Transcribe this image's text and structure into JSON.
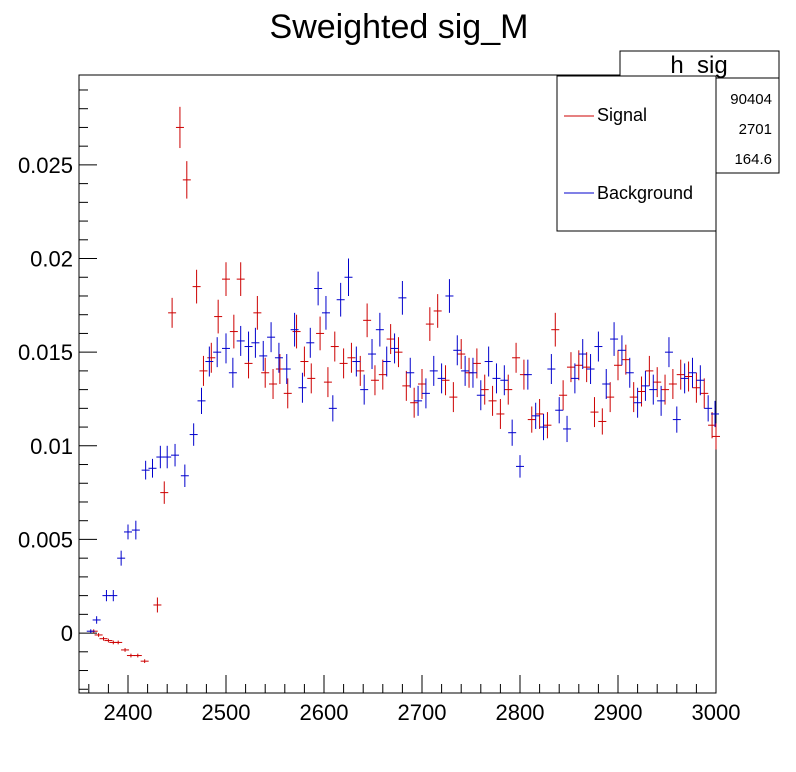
{
  "chart_data": {
    "type": "scatter",
    "title": "Sweighted sig_M",
    "xlabel": "",
    "ylabel": "",
    "xlim": [
      2350,
      3000
    ],
    "ylim": [
      -0.0032,
      0.0298
    ],
    "x_ticks": [
      "2400",
      "2500",
      "2600",
      "2700",
      "2800",
      "2900",
      "3000"
    ],
    "y_ticks": [
      "0",
      "0.005",
      "0.01",
      "0.015",
      "0.02",
      "0.025"
    ],
    "stats_box": {
      "title": "h_sig",
      "values": [
        "90404",
        "2701",
        "164.6"
      ]
    },
    "legend": {
      "placement": "top-right"
    },
    "series": [
      {
        "name": "Signal",
        "color": "#cc0000",
        "points": [
          [
            2365,
            0.0001,
            0.0001
          ],
          [
            2370,
            -0.0001,
            0.0001
          ],
          [
            2375,
            -0.0003,
            0.0001
          ],
          [
            2380,
            -0.0004,
            0.0001
          ],
          [
            2385,
            -0.0005,
            0.0001
          ],
          [
            2390,
            -0.0005,
            0.0001
          ],
          [
            2397,
            -0.0009,
            0.0001
          ],
          [
            2403,
            -0.0012,
            0.0001
          ],
          [
            2410,
            -0.0012,
            0.0001
          ],
          [
            2417,
            -0.0015,
            0.0001
          ],
          [
            2430,
            0.0015,
            0.0004
          ],
          [
            2437,
            0.0075,
            0.0006
          ],
          [
            2445,
            0.0171,
            0.0008
          ],
          [
            2453,
            0.027,
            0.0011
          ],
          [
            2460,
            0.0242,
            0.001
          ],
          [
            2470,
            0.0185,
            0.0009
          ],
          [
            2477,
            0.014,
            0.0008
          ],
          [
            2485,
            0.0147,
            0.0008
          ],
          [
            2492,
            0.0169,
            0.0009
          ],
          [
            2500,
            0.0189,
            0.0009
          ],
          [
            2508,
            0.0161,
            0.0009
          ],
          [
            2515,
            0.0189,
            0.0009
          ],
          [
            2523,
            0.0144,
            0.0008
          ],
          [
            2532,
            0.0171,
            0.0009
          ],
          [
            2540,
            0.0139,
            0.0008
          ],
          [
            2548,
            0.0133,
            0.0008
          ],
          [
            2555,
            0.0141,
            0.0008
          ],
          [
            2563,
            0.0128,
            0.0008
          ],
          [
            2572,
            0.0161,
            0.0009
          ],
          [
            2580,
            0.0145,
            0.0008
          ],
          [
            2587,
            0.0136,
            0.0008
          ],
          [
            2596,
            0.016,
            0.0009
          ],
          [
            2604,
            0.0134,
            0.0008
          ],
          [
            2611,
            0.0153,
            0.0008
          ],
          [
            2620,
            0.0144,
            0.0008
          ],
          [
            2628,
            0.0147,
            0.0008
          ],
          [
            2637,
            0.014,
            0.0008
          ],
          [
            2644,
            0.0167,
            0.0009
          ],
          [
            2652,
            0.0135,
            0.0008
          ],
          [
            2660,
            0.0138,
            0.0008
          ],
          [
            2668,
            0.0157,
            0.0008
          ],
          [
            2676,
            0.015,
            0.0008
          ],
          [
            2684,
            0.0132,
            0.0008
          ],
          [
            2692,
            0.0123,
            0.0008
          ],
          [
            2700,
            0.0133,
            0.0008
          ],
          [
            2708,
            0.0165,
            0.0009
          ],
          [
            2716,
            0.0172,
            0.0009
          ],
          [
            2724,
            0.0135,
            0.0008
          ],
          [
            2732,
            0.0126,
            0.0008
          ],
          [
            2740,
            0.0149,
            0.0008
          ],
          [
            2748,
            0.0139,
            0.0008
          ],
          [
            2756,
            0.0144,
            0.0008
          ],
          [
            2764,
            0.013,
            0.0008
          ],
          [
            2772,
            0.0124,
            0.0008
          ],
          [
            2780,
            0.0117,
            0.0008
          ],
          [
            2788,
            0.013,
            0.0008
          ],
          [
            2796,
            0.0147,
            0.0008
          ],
          [
            2804,
            0.0138,
            0.0008
          ],
          [
            2812,
            0.0114,
            0.0007
          ],
          [
            2820,
            0.0117,
            0.0008
          ],
          [
            2828,
            0.0111,
            0.0007
          ],
          [
            2836,
            0.0162,
            0.0009
          ],
          [
            2844,
            0.0127,
            0.0008
          ],
          [
            2852,
            0.0142,
            0.0008
          ],
          [
            2860,
            0.0143,
            0.0008
          ],
          [
            2868,
            0.0142,
            0.0008
          ],
          [
            2876,
            0.0118,
            0.0008
          ],
          [
            2884,
            0.0113,
            0.0007
          ],
          [
            2892,
            0.0126,
            0.0008
          ],
          [
            2900,
            0.0143,
            0.0008
          ],
          [
            2908,
            0.0146,
            0.0008
          ],
          [
            2916,
            0.0126,
            0.0008
          ],
          [
            2924,
            0.0129,
            0.0008
          ],
          [
            2932,
            0.014,
            0.0008
          ],
          [
            2940,
            0.0134,
            0.0008
          ],
          [
            2948,
            0.013,
            0.0008
          ],
          [
            2956,
            0.0133,
            0.0008
          ],
          [
            2964,
            0.0138,
            0.0008
          ],
          [
            2972,
            0.0137,
            0.0008
          ],
          [
            2980,
            0.0131,
            0.0008
          ],
          [
            2988,
            0.0128,
            0.0008
          ],
          [
            2996,
            0.0111,
            0.0007
          ],
          [
            3000,
            0.0105,
            0.0007
          ]
        ]
      },
      {
        "name": "Background",
        "color": "#0000cc",
        "points": [
          [
            2362,
            0.0001,
            0.0001
          ],
          [
            2368,
            0.0007,
            0.0002
          ],
          [
            2378,
            0.002,
            0.0003
          ],
          [
            2385,
            0.002,
            0.0003
          ],
          [
            2393,
            0.004,
            0.0004
          ],
          [
            2400,
            0.0054,
            0.0004
          ],
          [
            2408,
            0.0055,
            0.0005
          ],
          [
            2418,
            0.0087,
            0.0005
          ],
          [
            2425,
            0.0088,
            0.0005
          ],
          [
            2433,
            0.0094,
            0.0006
          ],
          [
            2440,
            0.0094,
            0.0006
          ],
          [
            2448,
            0.0095,
            0.0006
          ],
          [
            2458,
            0.0084,
            0.0006
          ],
          [
            2467,
            0.0106,
            0.0006
          ],
          [
            2475,
            0.0124,
            0.0007
          ],
          [
            2483,
            0.0145,
            0.0008
          ],
          [
            2491,
            0.015,
            0.0008
          ],
          [
            2500,
            0.0152,
            0.0008
          ],
          [
            2507,
            0.0139,
            0.0008
          ],
          [
            2515,
            0.0156,
            0.0008
          ],
          [
            2523,
            0.0153,
            0.0008
          ],
          [
            2530,
            0.0155,
            0.0008
          ],
          [
            2538,
            0.0148,
            0.0008
          ],
          [
            2546,
            0.0158,
            0.0008
          ],
          [
            2554,
            0.0147,
            0.0008
          ],
          [
            2562,
            0.0141,
            0.0008
          ],
          [
            2570,
            0.0162,
            0.0009
          ],
          [
            2578,
            0.0131,
            0.0008
          ],
          [
            2586,
            0.0155,
            0.0008
          ],
          [
            2594,
            0.0184,
            0.0009
          ],
          [
            2602,
            0.0171,
            0.0009
          ],
          [
            2609,
            0.012,
            0.0007
          ],
          [
            2617,
            0.0178,
            0.0009
          ],
          [
            2625,
            0.019,
            0.001
          ],
          [
            2633,
            0.0145,
            0.0008
          ],
          [
            2641,
            0.013,
            0.0008
          ],
          [
            2649,
            0.0149,
            0.0008
          ],
          [
            2657,
            0.0162,
            0.0009
          ],
          [
            2664,
            0.0145,
            0.0008
          ],
          [
            2672,
            0.0152,
            0.0008
          ],
          [
            2680,
            0.0179,
            0.0009
          ],
          [
            2688,
            0.0139,
            0.0008
          ],
          [
            2696,
            0.0124,
            0.0008
          ],
          [
            2704,
            0.0128,
            0.0008
          ],
          [
            2712,
            0.014,
            0.0008
          ],
          [
            2720,
            0.0136,
            0.0008
          ],
          [
            2728,
            0.018,
            0.0009
          ],
          [
            2736,
            0.0151,
            0.0008
          ],
          [
            2744,
            0.014,
            0.0008
          ],
          [
            2752,
            0.0139,
            0.0008
          ],
          [
            2760,
            0.0127,
            0.0008
          ],
          [
            2768,
            0.0145,
            0.0008
          ],
          [
            2776,
            0.0136,
            0.0008
          ],
          [
            2784,
            0.0135,
            0.0008
          ],
          [
            2792,
            0.0107,
            0.0007
          ],
          [
            2800,
            0.0089,
            0.0006
          ],
          [
            2808,
            0.0138,
            0.0008
          ],
          [
            2816,
            0.0116,
            0.0007
          ],
          [
            2824,
            0.011,
            0.0007
          ],
          [
            2832,
            0.0141,
            0.0008
          ],
          [
            2840,
            0.0119,
            0.0007
          ],
          [
            2848,
            0.0109,
            0.0007
          ],
          [
            2856,
            0.0136,
            0.0008
          ],
          [
            2864,
            0.0149,
            0.0008
          ],
          [
            2872,
            0.0141,
            0.0008
          ],
          [
            2880,
            0.0153,
            0.0008
          ],
          [
            2888,
            0.0133,
            0.0008
          ],
          [
            2896,
            0.0157,
            0.0009
          ],
          [
            2904,
            0.0151,
            0.0008
          ],
          [
            2912,
            0.0139,
            0.0008
          ],
          [
            2920,
            0.0123,
            0.0008
          ],
          [
            2928,
            0.0132,
            0.0008
          ],
          [
            2936,
            0.013,
            0.0008
          ],
          [
            2944,
            0.0124,
            0.0008
          ],
          [
            2952,
            0.015,
            0.0008
          ],
          [
            2960,
            0.0114,
            0.0007
          ],
          [
            2968,
            0.0136,
            0.0008
          ],
          [
            2976,
            0.0139,
            0.0008
          ],
          [
            2984,
            0.0135,
            0.0008
          ],
          [
            2992,
            0.012,
            0.0007
          ],
          [
            2999,
            0.0117,
            0.0007
          ]
        ]
      }
    ]
  }
}
